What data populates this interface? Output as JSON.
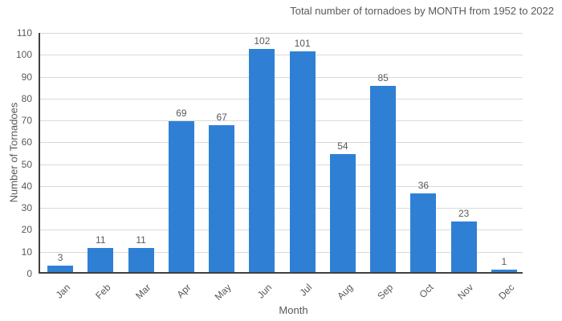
{
  "chart_data": {
    "type": "bar",
    "title": "Total number of tornadoes by MONTH from 1952 to 2022",
    "xlabel": "Month",
    "ylabel": "Number of Tornadoes",
    "categories": [
      "Jan",
      "Feb",
      "Mar",
      "Apr",
      "May",
      "Jun",
      "Jul",
      "Aug",
      "Sep",
      "Oct",
      "Nov",
      "Dec"
    ],
    "values": [
      3,
      11,
      11,
      69,
      67,
      102,
      101,
      54,
      85,
      36,
      23,
      1
    ],
    "ylim": [
      0,
      110
    ],
    "ytick_step": 10,
    "yticks": [
      0,
      10,
      20,
      30,
      40,
      50,
      60,
      70,
      80,
      90,
      100,
      110
    ],
    "grid": true,
    "legend": "none",
    "bar_value_labels": true,
    "colors": {
      "bar": "#2f80d4",
      "grid": "#d9d9d9",
      "axis": "#404040",
      "text": "#595959",
      "background": "#ffffff"
    }
  }
}
